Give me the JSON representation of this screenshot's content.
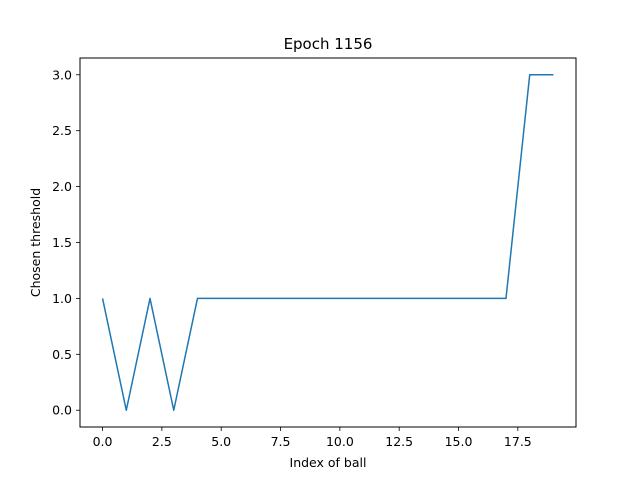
{
  "chart_data": {
    "type": "line",
    "title": "Epoch 1156",
    "xlabel": "Index of ball",
    "ylabel": "Chosen threshold",
    "xlim": [
      -0.95,
      19.95
    ],
    "ylim": [
      -0.15,
      3.15
    ],
    "x_ticks": [
      0.0,
      2.5,
      5.0,
      7.5,
      10.0,
      12.5,
      15.0,
      17.5
    ],
    "y_ticks": [
      0.0,
      0.5,
      1.0,
      1.5,
      2.0,
      2.5,
      3.0
    ],
    "x_tick_labels": [
      "0.0",
      "2.5",
      "5.0",
      "7.5",
      "10.0",
      "12.5",
      "15.0",
      "17.5"
    ],
    "y_tick_labels": [
      "0.0",
      "0.5",
      "1.0",
      "1.5",
      "2.0",
      "2.5",
      "3.0"
    ],
    "grid": false,
    "series": [
      {
        "color": "#1f77b4",
        "x": [
          0,
          1,
          2,
          3,
          4,
          5,
          6,
          7,
          8,
          9,
          10,
          11,
          12,
          13,
          14,
          15,
          16,
          17,
          18,
          19
        ],
        "y": [
          1,
          0,
          1,
          0,
          1,
          1,
          1,
          1,
          1,
          1,
          1,
          1,
          1,
          1,
          1,
          1,
          1,
          1,
          3,
          3
        ]
      }
    ]
  }
}
